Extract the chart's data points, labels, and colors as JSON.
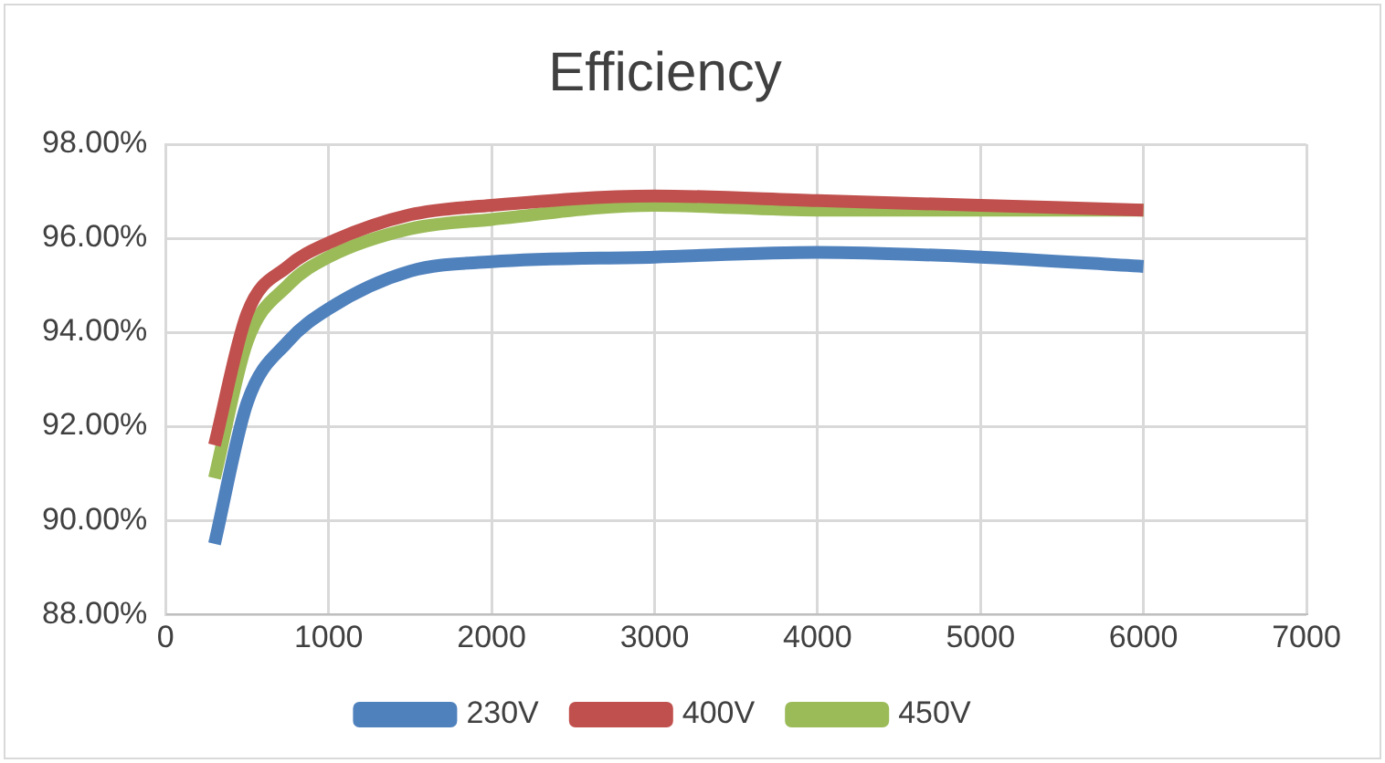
{
  "chart_data": {
    "type": "line",
    "title": "Efficiency",
    "x": [
      300,
      500,
      750,
      1000,
      1500,
      2000,
      3000,
      4000,
      5000,
      6000
    ],
    "series": [
      {
        "name": "230V",
        "color": "#4f81bd",
        "values": [
          89.5,
          92.5,
          93.8,
          94.5,
          95.3,
          95.5,
          95.6,
          95.7,
          95.6,
          95.4
        ]
      },
      {
        "name": "400V",
        "color": "#c0504d",
        "values": [
          91.6,
          94.4,
          95.4,
          95.9,
          96.5,
          96.7,
          96.9,
          96.8,
          96.7,
          96.6
        ]
      },
      {
        "name": "450V",
        "color": "#9bbb59",
        "values": [
          90.9,
          93.8,
          95.0,
          95.6,
          96.2,
          96.4,
          96.7,
          96.6,
          96.6,
          96.6
        ]
      }
    ],
    "xlim": [
      0,
      7000
    ],
    "xticks": [
      0,
      1000,
      2000,
      3000,
      4000,
      5000,
      6000,
      7000
    ],
    "ylim": [
      88,
      98
    ],
    "yticks": [
      {
        "value": 88,
        "label": "88.00%"
      },
      {
        "value": 90,
        "label": "90.00%"
      },
      {
        "value": 92,
        "label": "92.00%"
      },
      {
        "value": 94,
        "label": "94.00%"
      },
      {
        "value": 96,
        "label": "96.00%"
      },
      {
        "value": 98,
        "label": "98.00%"
      }
    ],
    "grid": true,
    "legend": "bottom",
    "marker": "none",
    "line_style": "solid"
  }
}
